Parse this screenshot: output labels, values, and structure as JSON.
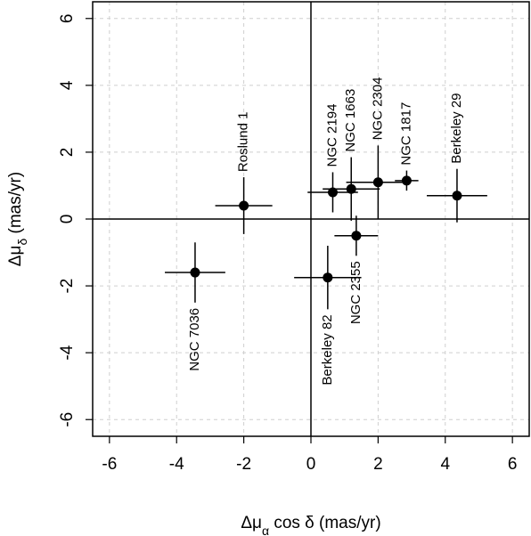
{
  "chart_data": {
    "type": "scatter",
    "xlabel": {
      "prefix": "Δμ",
      "sub": "α",
      "suffix": " cos δ (mas/yr)"
    },
    "ylabel": {
      "prefix": "Δμ",
      "sub": "δ",
      "suffix": " (mas/yr)"
    },
    "xlim": [
      -6.5,
      6.5
    ],
    "ylim": [
      -6.5,
      6.5
    ],
    "xticks": [
      -6,
      -4,
      -2,
      0,
      2,
      4,
      6
    ],
    "yticks": [
      -6,
      -4,
      -2,
      0,
      2,
      4,
      6
    ],
    "xtick_labels": [
      "-6",
      "-4",
      "-2",
      "0",
      "2",
      "4",
      "6"
    ],
    "ytick_labels": [
      "-6",
      "-4",
      "-2",
      "0",
      "2",
      "4",
      "6"
    ],
    "grid": true,
    "reference_lines": {
      "x": 0,
      "y": 0
    },
    "points": [
      {
        "label": "Roslund 1",
        "x": -2.0,
        "y": 0.4,
        "xerr": 0.85,
        "yerr": 0.85,
        "label_side": "above"
      },
      {
        "label": "NGC 7036",
        "x": -3.45,
        "y": -1.6,
        "xerr": 0.9,
        "yerr": 0.9,
        "label_side": "below"
      },
      {
        "label": "NGC 2194",
        "x": 0.65,
        "y": 0.8,
        "xerr": 0.75,
        "yerr": 0.6,
        "label_side": "above"
      },
      {
        "label": "NGC 1663",
        "x": 1.2,
        "y": 0.9,
        "xerr": 0.85,
        "yerr": 0.95,
        "label_side": "above"
      },
      {
        "label": "NGC 2304",
        "x": 2.0,
        "y": 1.1,
        "xerr": 0.95,
        "yerr": 1.1,
        "label_side": "above"
      },
      {
        "label": "NGC 1817",
        "x": 2.85,
        "y": 1.15,
        "xerr": 0.35,
        "yerr": 0.3,
        "label_side": "above"
      },
      {
        "label": "Berkeley 29",
        "x": 4.35,
        "y": 0.7,
        "xerr": 0.9,
        "yerr": 0.8,
        "label_side": "above"
      },
      {
        "label": "NGC 2355",
        "x": 1.35,
        "y": -0.5,
        "xerr": 0.65,
        "yerr": 0.6,
        "label_side": "below"
      },
      {
        "label": "Berkeley 82",
        "x": 0.5,
        "y": -1.75,
        "xerr": 1.0,
        "yerr": 0.95,
        "label_side": "below"
      }
    ]
  }
}
